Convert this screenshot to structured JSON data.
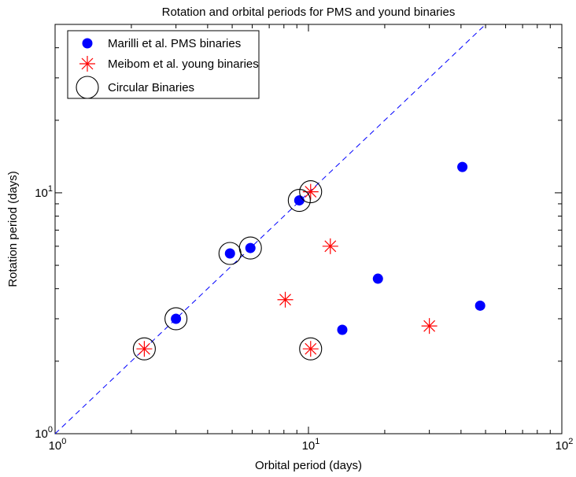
{
  "chart_data": {
    "type": "scatter",
    "title": "Rotation and orbital periods for PMS and yound binaries",
    "xlabel": "Orbital period (days)",
    "ylabel": "Rotation period (days)",
    "xscale": "log",
    "yscale": "log",
    "xlim": [
      1,
      100
    ],
    "ylim": [
      1,
      50
    ],
    "x_ticks": [
      {
        "value": 1,
        "base": "10",
        "exp": "0"
      },
      {
        "value": 10,
        "base": "10",
        "exp": "1"
      },
      {
        "value": 100,
        "base": "10",
        "exp": "2"
      }
    ],
    "y_ticks": [
      {
        "value": 1,
        "base": "10",
        "exp": "0"
      },
      {
        "value": 10,
        "base": "10",
        "exp": "1"
      }
    ],
    "grid": false,
    "legend_position": "top-left",
    "reference_line": {
      "style": "dashed",
      "color": "#0000ff",
      "relation": "y = x"
    },
    "series": [
      {
        "name": "Marilli et al. PMS binaries",
        "marker": "filled-circle",
        "color": "#0000ff",
        "points": [
          {
            "x": 3.0,
            "y": 3.0
          },
          {
            "x": 4.9,
            "y": 5.6
          },
          {
            "x": 5.9,
            "y": 5.9
          },
          {
            "x": 9.2,
            "y": 9.3
          },
          {
            "x": 13.6,
            "y": 2.7
          },
          {
            "x": 18.8,
            "y": 4.4
          },
          {
            "x": 40.5,
            "y": 12.8
          },
          {
            "x": 47.6,
            "y": 3.4
          }
        ]
      },
      {
        "name": "Meibom et al. young binaries",
        "marker": "asterisk",
        "color": "#ff0000",
        "points": [
          {
            "x": 2.25,
            "y": 2.25
          },
          {
            "x": 8.1,
            "y": 3.6
          },
          {
            "x": 10.2,
            "y": 10.1
          },
          {
            "x": 10.2,
            "y": 2.25
          },
          {
            "x": 12.2,
            "y": 6.0
          },
          {
            "x": 30.0,
            "y": 2.8
          }
        ]
      },
      {
        "name": "Circular Binaries",
        "marker": "open-circle",
        "color": "#000000",
        "points": [
          {
            "x": 2.25,
            "y": 2.25
          },
          {
            "x": 3.0,
            "y": 3.0
          },
          {
            "x": 4.9,
            "y": 5.6
          },
          {
            "x": 5.9,
            "y": 5.9
          },
          {
            "x": 9.2,
            "y": 9.3
          },
          {
            "x": 10.2,
            "y": 10.1
          },
          {
            "x": 10.2,
            "y": 2.25
          }
        ]
      }
    ]
  }
}
